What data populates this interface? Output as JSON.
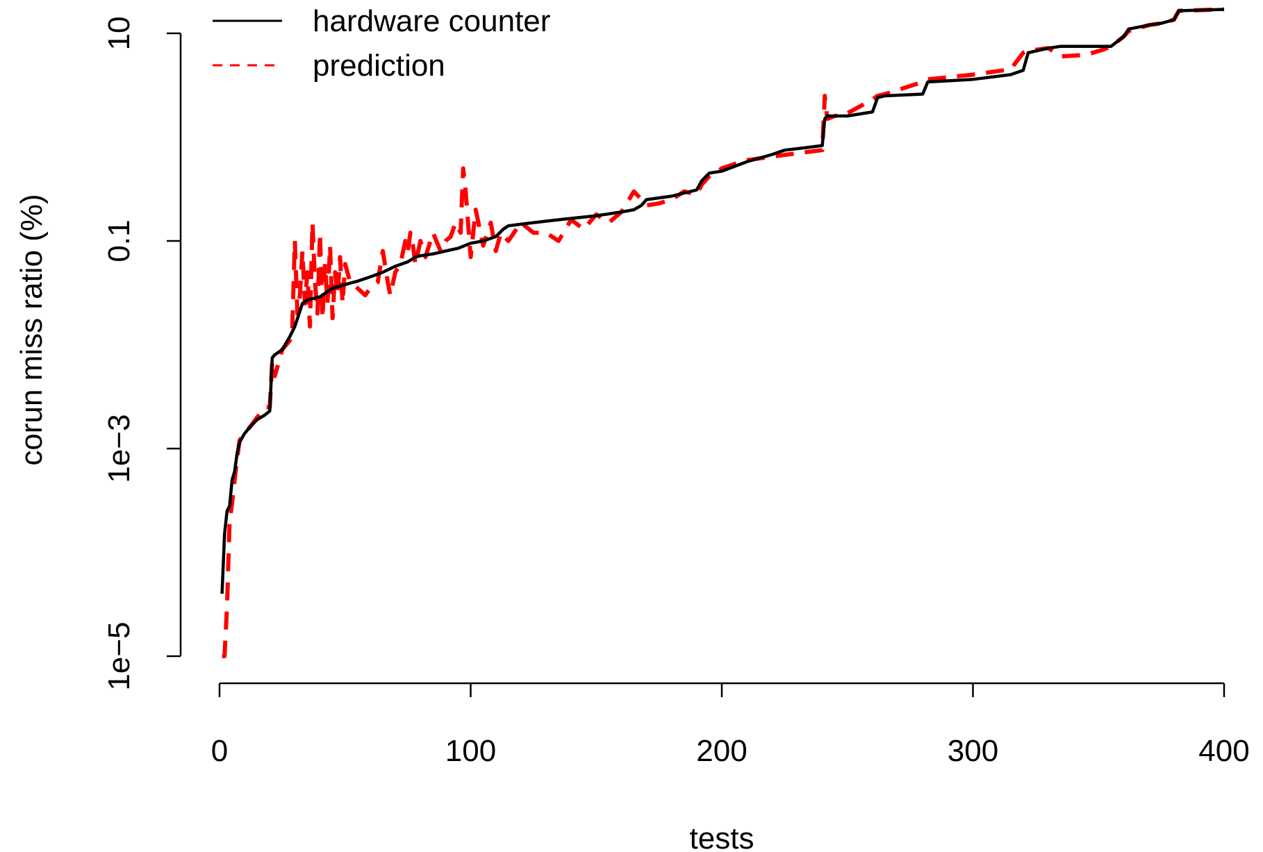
{
  "chart_data": {
    "type": "line",
    "title": "",
    "xlabel": "tests",
    "ylabel": "corun miss ratio (%)",
    "xlim": [
      0,
      400
    ],
    "ylim": [
      1e-05,
      20
    ],
    "y_scale": "log",
    "x_ticks": [
      0,
      100,
      200,
      300,
      400
    ],
    "x_tick_labels": [
      "0",
      "100",
      "200",
      "300",
      "400"
    ],
    "y_ticks": [
      1e-05,
      0.001,
      0.1,
      10
    ],
    "y_tick_labels": [
      "1e−5",
      "1e−3",
      "0.1",
      "10"
    ],
    "grid": false,
    "legend_position": "top-left",
    "series": [
      {
        "name": "hardware counter",
        "color": "#000000",
        "dash": "solid",
        "x": [
          1,
          2,
          3,
          4,
          5,
          6,
          7,
          8,
          10,
          12,
          15,
          18,
          20,
          21,
          22,
          25,
          28,
          30,
          33,
          35,
          40,
          45,
          50,
          55,
          60,
          65,
          70,
          75,
          78,
          80,
          85,
          90,
          95,
          100,
          105,
          110,
          113,
          115,
          120,
          130,
          140,
          150,
          160,
          165,
          168,
          170,
          180,
          190,
          192,
          195,
          200,
          210,
          220,
          225,
          235,
          240,
          241,
          242,
          250,
          260,
          262,
          265,
          280,
          282,
          300,
          315,
          320,
          322,
          330,
          335,
          355,
          360,
          362,
          370,
          375,
          380,
          382,
          400
        ],
        "y": [
          4e-05,
          0.00015,
          0.00025,
          0.00028,
          0.0005,
          0.0006,
          0.0009,
          0.00115,
          0.0014,
          0.0016,
          0.0019,
          0.0021,
          0.0023,
          0.0075,
          0.008,
          0.009,
          0.012,
          0.015,
          0.025,
          0.027,
          0.029,
          0.035,
          0.038,
          0.041,
          0.045,
          0.05,
          0.057,
          0.063,
          0.07,
          0.072,
          0.075,
          0.08,
          0.085,
          0.095,
          0.1,
          0.11,
          0.13,
          0.14,
          0.145,
          0.155,
          0.165,
          0.175,
          0.19,
          0.2,
          0.22,
          0.25,
          0.27,
          0.31,
          0.38,
          0.45,
          0.47,
          0.58,
          0.68,
          0.75,
          0.8,
          0.83,
          1.5,
          1.6,
          1.6,
          1.75,
          2.4,
          2.5,
          2.6,
          3.4,
          3.6,
          4.0,
          4.4,
          6.5,
          7.2,
          7.5,
          7.5,
          9.3,
          11,
          12,
          12.5,
          13.5,
          16.5,
          17
        ]
      },
      {
        "name": "prediction",
        "color": "#ff0000",
        "dash": "dashed",
        "x": [
          1,
          2,
          3,
          4,
          5,
          6,
          7,
          8,
          10,
          12,
          15,
          18,
          20,
          21,
          22,
          25,
          28,
          29,
          30,
          31,
          32,
          33,
          34,
          35,
          36,
          37,
          38,
          39,
          40,
          41,
          42,
          43,
          44,
          45,
          46,
          47,
          48,
          49,
          50,
          52,
          55,
          58,
          60,
          63,
          65,
          67,
          68,
          70,
          72,
          74,
          75,
          76,
          77,
          78,
          80,
          82,
          85,
          88,
          90,
          92,
          94,
          96,
          97,
          98,
          100,
          102,
          105,
          108,
          110,
          112,
          115,
          120,
          125,
          130,
          135,
          140,
          145,
          150,
          155,
          160,
          165,
          168,
          170,
          175,
          180,
          185,
          190,
          192,
          195,
          200,
          205,
          210,
          220,
          230,
          240,
          241,
          242,
          245,
          250,
          260,
          262,
          265,
          280,
          282,
          300,
          315,
          320,
          322,
          330,
          335,
          345,
          352,
          355,
          360,
          362,
          370,
          375,
          380,
          382,
          400
        ],
        "y": [
          1e-05,
          1e-05,
          3e-05,
          0.0002,
          0.0003,
          0.0005,
          0.0008,
          0.0012,
          0.0014,
          0.0016,
          0.002,
          0.0025,
          0.0025,
          0.007,
          0.005,
          0.009,
          0.011,
          0.015,
          0.1,
          0.02,
          0.03,
          0.08,
          0.025,
          0.05,
          0.015,
          0.15,
          0.04,
          0.02,
          0.12,
          0.018,
          0.06,
          0.025,
          0.09,
          0.018,
          0.05,
          0.03,
          0.07,
          0.025,
          0.06,
          0.04,
          0.035,
          0.03,
          0.035,
          0.04,
          0.08,
          0.04,
          0.03,
          0.05,
          0.06,
          0.1,
          0.08,
          0.12,
          0.09,
          0.06,
          0.1,
          0.07,
          0.12,
          0.08,
          0.1,
          0.11,
          0.15,
          0.12,
          0.5,
          0.3,
          0.07,
          0.2,
          0.09,
          0.15,
          0.08,
          0.12,
          0.1,
          0.15,
          0.12,
          0.12,
          0.1,
          0.16,
          0.13,
          0.18,
          0.15,
          0.19,
          0.3,
          0.25,
          0.22,
          0.23,
          0.25,
          0.3,
          0.28,
          0.35,
          0.42,
          0.5,
          0.55,
          0.6,
          0.65,
          0.7,
          0.75,
          2.5,
          1.5,
          1.6,
          1.7,
          2.3,
          2.5,
          2.6,
          3.4,
          3.6,
          4.0,
          4.5,
          6.5,
          6.8,
          7.2,
          6.0,
          6.2,
          7.0,
          7.5,
          9.3,
          10.5,
          12,
          12.5,
          13.5,
          16.5,
          17
        ]
      }
    ]
  }
}
